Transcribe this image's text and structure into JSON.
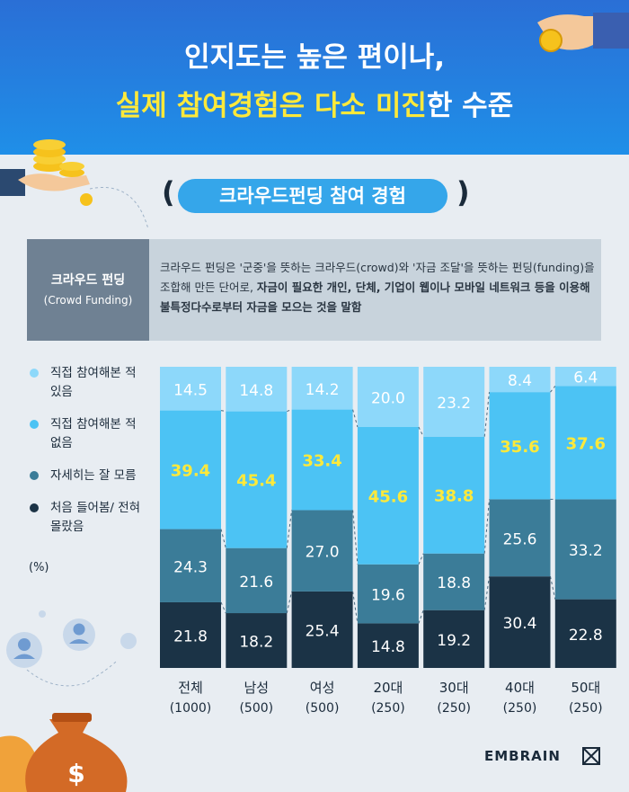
{
  "header": {
    "line1": "인지도는 높은 편이나,",
    "line2_hl1": "실제 참여경험은 다소 미진",
    "line2_rest": "한 수준"
  },
  "section_title": "크라우드펀딩 참여 경험",
  "definition": {
    "term": "크라우드 펀딩",
    "term_en": "(Crowd Funding)",
    "p1": "크라우드 펀딩은 '군중'을 뜻하는 크라우드(crowd)와 '자금 조달'을 뜻하는 펀딩(funding)을 조합해 만든 단어로, ",
    "p_bold": "자금이 필요한 개인, 단체, 기업이 웹이나 모바일 네트워크 등을 이용해 불특정다수로부터 자금을 모으는 것을 말함"
  },
  "brand": "EMBRAIN",
  "chart_data": {
    "type": "bar",
    "stacked": true,
    "unit": "(%)",
    "categories": [
      "전체",
      "남성",
      "여성",
      "20대",
      "30대",
      "40대",
      "50대"
    ],
    "sample_sizes": [
      "(1000)",
      "(500)",
      "(500)",
      "(250)",
      "(250)",
      "(250)",
      "(250)"
    ],
    "series": [
      {
        "name": "처음 들어봄/ 전혀 몰랐음",
        "color": "#1b3346",
        "values": [
          21.8,
          18.2,
          25.4,
          14.8,
          19.2,
          30.4,
          22.8
        ]
      },
      {
        "name": "자세히는 잘 모름",
        "color": "#3b7c98",
        "values": [
          24.3,
          21.6,
          27.0,
          19.6,
          18.8,
          25.6,
          33.2
        ]
      },
      {
        "name": "직접 참여해본 적 없음",
        "color": "#4cc3f4",
        "values": [
          39.4,
          45.4,
          33.4,
          45.6,
          38.8,
          35.6,
          37.6
        ]
      },
      {
        "name": "직접 참여해본 적 있음",
        "color": "#8dd8fa",
        "values": [
          14.5,
          14.8,
          14.2,
          20.0,
          23.2,
          8.4,
          6.4
        ]
      }
    ],
    "label_colors": {
      "highlight": "#ffe93a",
      "normal": "#ffffff"
    },
    "legend_position": "left"
  }
}
